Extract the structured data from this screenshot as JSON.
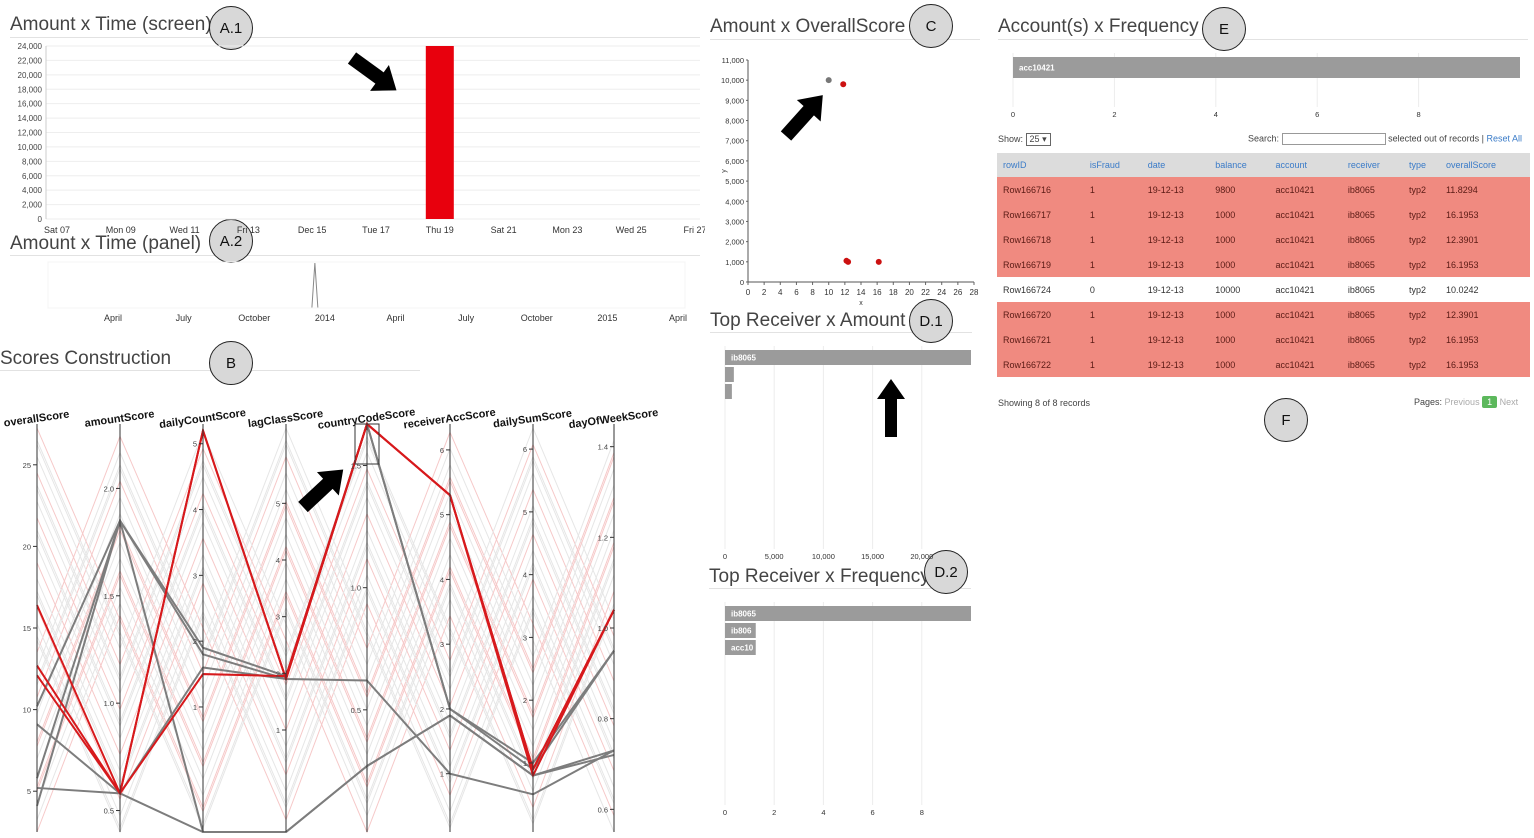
{
  "panels": {
    "a1": {
      "title": "Amount x Time (screen)",
      "badge": "A.1"
    },
    "a2": {
      "title": "Amount x Time (panel)",
      "badge": "A.2"
    },
    "b": {
      "title": "Scores Construction",
      "badge": "B"
    },
    "c": {
      "title": "Amount x OverallScore",
      "badge": "C"
    },
    "d1": {
      "title": "Top Receiver x Amount",
      "badge": "D.1"
    },
    "d2": {
      "title": "Top Receiver x Frequency",
      "badge": "D.2"
    },
    "e": {
      "title": "Account(s) x Frequency",
      "badge": "E"
    },
    "f": {
      "badge": "F"
    }
  },
  "colors": {
    "highlight": "#e8000d",
    "bar_gray": "#9b9b9b",
    "fraud_row": "#f08a80",
    "link": "#3a7bc8",
    "page_active": "#5cb85c"
  },
  "chart_data": [
    {
      "id": "amount-time-screen",
      "type": "bar",
      "y_ticks": [
        "0",
        "2,000",
        "4,000",
        "6,000",
        "8,000",
        "10,000",
        "12,000",
        "14,000",
        "16,000",
        "18,000",
        "20,000",
        "22,000",
        "24,000"
      ],
      "ylim": [
        0,
        24000
      ],
      "x_ticks": [
        "Sat 07",
        "Mon 09",
        "Wed 11",
        "Fri 13",
        "Dec 15",
        "Tue 17",
        "Thu 19",
        "Sat 21",
        "Mon 23",
        "Wed 25",
        "Fri 27"
      ],
      "bars": [
        {
          "x": "Thu 19",
          "value": 24000,
          "color": "#e8000d"
        }
      ]
    },
    {
      "id": "amount-time-panel",
      "type": "line",
      "x_ticks": [
        "April",
        "July",
        "October",
        "2014",
        "April",
        "July",
        "October",
        "2015",
        "April"
      ],
      "spike_at": "2014"
    },
    {
      "id": "amount-overallscore",
      "type": "scatter",
      "xlabel": "x",
      "ylabel": "y",
      "x_ticks": [
        "0",
        "2",
        "4",
        "6",
        "8",
        "10",
        "12",
        "14",
        "16",
        "18",
        "20",
        "22",
        "24",
        "26",
        "28"
      ],
      "y_ticks": [
        "0",
        "1,000",
        "2,000",
        "3,000",
        "4,000",
        "5,000",
        "6,000",
        "7,000",
        "8,000",
        "9,000",
        "10,000",
        "11,000"
      ],
      "xlim": [
        0,
        28
      ],
      "ylim": [
        0,
        11000
      ],
      "points": [
        {
          "x": 10.0,
          "y": 10000,
          "color": "#777777"
        },
        {
          "x": 11.8,
          "y": 9800,
          "color": "#cc1111"
        },
        {
          "x": 12.4,
          "y": 1000,
          "color": "#cc1111"
        },
        {
          "x": 12.2,
          "y": 1050,
          "color": "#cc1111"
        },
        {
          "x": 16.2,
          "y": 1000,
          "color": "#cc1111"
        }
      ]
    },
    {
      "id": "top-receiver-amount",
      "type": "bar",
      "orientation": "horizontal",
      "x_ticks": [
        "0",
        "5,000",
        "10,000",
        "15,000",
        "20,000"
      ],
      "xlim": [
        0,
        25000
      ],
      "bars": [
        {
          "label": "ib8065",
          "value": 25000
        },
        {
          "label": "",
          "value": 900
        },
        {
          "label": "",
          "value": 700
        }
      ]
    },
    {
      "id": "top-receiver-frequency",
      "type": "bar",
      "orientation": "horizontal",
      "x_ticks": [
        "0",
        "2",
        "4",
        "6",
        "8"
      ],
      "xlim": [
        0,
        8
      ],
      "bars": [
        {
          "label": "ib8065",
          "value": 8
        },
        {
          "label": "ib806",
          "value": 1
        },
        {
          "label": "acc10",
          "value": 1
        }
      ]
    },
    {
      "id": "accounts-frequency",
      "type": "bar",
      "orientation": "horizontal",
      "x_ticks": [
        "0",
        "2",
        "4",
        "6",
        "8"
      ],
      "xlim": [
        0,
        8
      ],
      "bars": [
        {
          "label": "acc10421",
          "value": 8
        }
      ]
    },
    {
      "id": "scores-construction",
      "type": "parallel-coordinates",
      "axes": [
        {
          "name": "overallScore",
          "ticks": [
            "5",
            "10",
            "15",
            "20",
            "25"
          ],
          "range": [
            2.5,
            27.5
          ]
        },
        {
          "name": "amountScore",
          "ticks": [
            "0.5",
            "1.0",
            "1.5",
            "2.0"
          ],
          "range": [
            0.4,
            2.3
          ]
        },
        {
          "name": "dailyCountScore",
          "ticks": [
            "1",
            "2",
            "3",
            "4",
            "5"
          ],
          "range": [
            -0.9,
            5.3
          ]
        },
        {
          "name": "lagClassScore",
          "ticks": [
            "1",
            "2",
            "3",
            "4",
            "5"
          ],
          "range": [
            -0.8,
            6.4
          ]
        },
        {
          "name": "countryCodeScore",
          "ticks": [
            "0.5",
            "1.0",
            "1.5"
          ],
          "range": [
            0.0,
            1.67
          ]
        },
        {
          "name": "receiverAccScore",
          "ticks": [
            "1",
            "2",
            "3",
            "4",
            "5",
            "6"
          ],
          "range": [
            0.1,
            6.4
          ]
        },
        {
          "name": "dailySumScore",
          "ticks": [
            "1",
            "2",
            "3",
            "4",
            "5",
            "6"
          ],
          "range": [
            -0.1,
            6.4
          ]
        },
        {
          "name": "dayOfWeekScore",
          "ticks": [
            "0.6",
            "0.8",
            "1.0",
            "1.2",
            "1.4"
          ],
          "range": [
            0.55,
            1.45
          ]
        }
      ],
      "red_lines": [
        [
          16.4,
          0.58,
          5.2,
          1.9,
          1.67,
          5.3,
          0.9,
          1.04
        ],
        [
          12.7,
          0.58,
          1.5,
          1.95,
          1.67,
          5.3,
          0.8,
          1.04
        ],
        [
          12.1,
          0.58,
          5.2,
          1.9,
          1.67,
          5.3,
          0.9,
          1.04
        ]
      ],
      "gray_lines": [
        [
          10.2,
          1.85,
          1.8,
          1.9,
          1.67,
          2.0,
          1.0,
          0.95
        ],
        [
          5.8,
          1.85,
          1.9,
          1.95,
          1.67,
          2.0,
          0.9,
          0.95
        ],
        [
          9.1,
          0.58,
          1.6,
          1.9,
          0.62,
          1.0,
          0.5,
          0.73
        ],
        [
          5.2,
          0.58,
          -0.9,
          -0.8,
          0.27,
          1.9,
          0.8,
          0.72
        ],
        [
          4.1,
          1.85,
          -0.9,
          -0.8,
          0.27,
          1.9,
          0.8,
          0.73
        ]
      ]
    }
  ],
  "table_panel": {
    "show_label": "Show:",
    "show_value": "25",
    "search_label": "Search:",
    "selected_text": "selected out of records |",
    "reset_label": "Reset All",
    "columns": [
      "rowID",
      "isFraud",
      "date",
      "balance",
      "account",
      "receiver",
      "type",
      "overallScore"
    ],
    "rows": [
      {
        "fraud": true,
        "cells": [
          "Row166716",
          "1",
          "19-12-13",
          "9800",
          "acc10421",
          "ib8065",
          "typ2",
          "11.8294"
        ]
      },
      {
        "fraud": true,
        "cells": [
          "Row166717",
          "1",
          "19-12-13",
          "1000",
          "acc10421",
          "ib8065",
          "typ2",
          "16.1953"
        ]
      },
      {
        "fraud": true,
        "cells": [
          "Row166718",
          "1",
          "19-12-13",
          "1000",
          "acc10421",
          "ib8065",
          "typ2",
          "12.3901"
        ]
      },
      {
        "fraud": true,
        "cells": [
          "Row166719",
          "1",
          "19-12-13",
          "1000",
          "acc10421",
          "ib8065",
          "typ2",
          "16.1953"
        ]
      },
      {
        "fraud": false,
        "cells": [
          "Row166724",
          "0",
          "19-12-13",
          "10000",
          "acc10421",
          "ib8065",
          "typ2",
          "10.0242"
        ]
      },
      {
        "fraud": true,
        "cells": [
          "Row166720",
          "1",
          "19-12-13",
          "1000",
          "acc10421",
          "ib8065",
          "typ2",
          "12.3901"
        ]
      },
      {
        "fraud": true,
        "cells": [
          "Row166721",
          "1",
          "19-12-13",
          "1000",
          "acc10421",
          "ib8065",
          "typ2",
          "16.1953"
        ]
      },
      {
        "fraud": true,
        "cells": [
          "Row166722",
          "1",
          "19-12-13",
          "1000",
          "acc10421",
          "ib8065",
          "typ2",
          "16.1953"
        ]
      }
    ],
    "showing_text": "Showing 8 of 8 records",
    "pages_label": "Pages:",
    "previous_label": "Previous",
    "current_page": "1",
    "next_label": "Next"
  }
}
